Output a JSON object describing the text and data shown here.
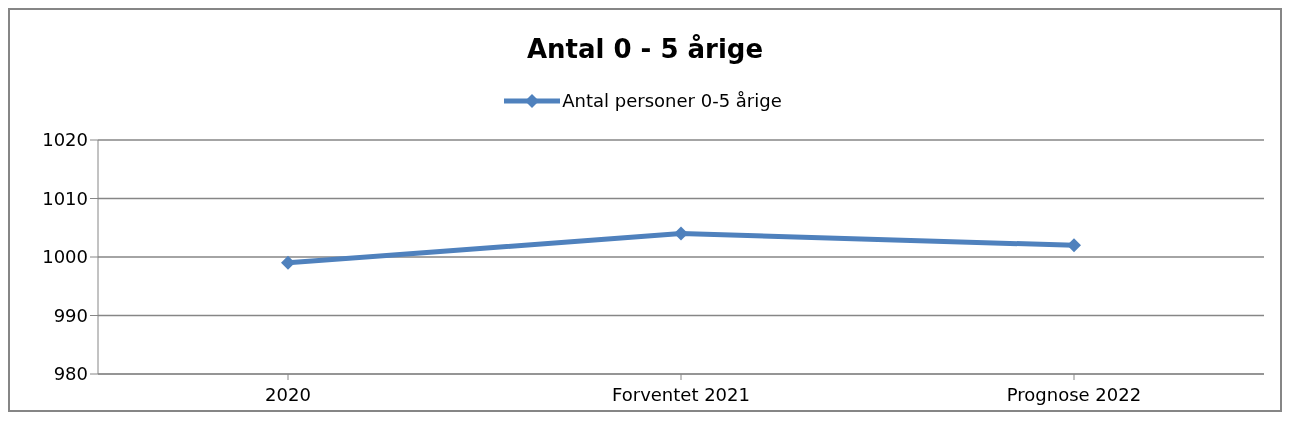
{
  "chart_data": {
    "type": "line",
    "title": "Antal 0 - 5 årige",
    "categories": [
      "2020",
      "Forventet 2021",
      "Prognose 2022"
    ],
    "series": [
      {
        "name": "Antal personer 0-5 årige",
        "color": "#4f81bd",
        "values": [
          999,
          1004,
          1002
        ]
      }
    ],
    "ylim": [
      980,
      1020
    ],
    "yticks": [
      980,
      990,
      1000,
      1010,
      1020
    ],
    "grid": "y",
    "legend": "top",
    "marker": "diamond",
    "line_style": "solid"
  }
}
